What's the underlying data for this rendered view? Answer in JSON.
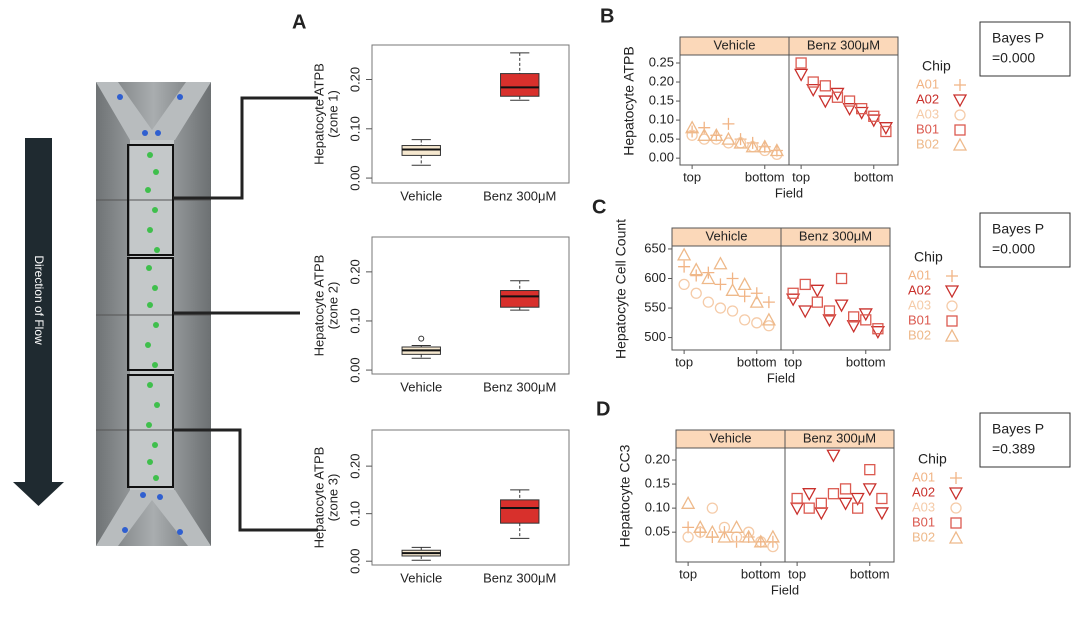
{
  "figure": {
    "flow_label": "Direction of Flow"
  },
  "chart_data": [
    {
      "type": "box",
      "panel_label": "A",
      "ylabel": "Hepatocyte ATPB",
      "ylabel_sub": "(zone 1)",
      "categories": [
        "Vehicle",
        "Benz 300μM"
      ],
      "colors": [
        "#f6e8cf",
        "#d8302c"
      ],
      "boxes": [
        {
          "min": 0.026,
          "q1": 0.046,
          "median": 0.058,
          "q3": 0.066,
          "max": 0.078,
          "outliers": []
        },
        {
          "min": 0.158,
          "q1": 0.166,
          "median": 0.184,
          "q3": 0.212,
          "max": 0.254,
          "outliers": []
        }
      ],
      "ylim": [
        -0.01,
        0.27
      ],
      "yticks": [
        {
          "value": 0,
          "label": "0.00"
        },
        {
          "value": 0.1,
          "label": "0.10"
        },
        {
          "value": 0.2,
          "label": "0.20"
        }
      ]
    },
    {
      "type": "box",
      "ylabel": "Hepatocyte ATPB",
      "ylabel_sub": "(zone 2)",
      "categories": [
        "Vehicle",
        "Benz 300μM"
      ],
      "colors": [
        "#f6e8cf",
        "#d8302c"
      ],
      "boxes": [
        {
          "min": 0.024,
          "q1": 0.032,
          "median": 0.04,
          "q3": 0.047,
          "max": 0.05,
          "outliers": [
            0.064
          ]
        },
        {
          "min": 0.122,
          "q1": 0.128,
          "median": 0.15,
          "q3": 0.162,
          "max": 0.182,
          "outliers": []
        }
      ],
      "ylim": [
        -0.008,
        0.271
      ],
      "yticks": [
        {
          "value": 0,
          "label": "0.00"
        },
        {
          "value": 0.1,
          "label": "0.10"
        },
        {
          "value": 0.2,
          "label": "0.20"
        }
      ]
    },
    {
      "type": "box",
      "ylabel": "Hepatocyte ATPB",
      "ylabel_sub": "(zone 3)",
      "categories": [
        "Vehicle",
        "Benz 300μM"
      ],
      "colors": [
        "#f6e8cf",
        "#d8302c"
      ],
      "boxes": [
        {
          "min": 0.002,
          "q1": 0.011,
          "median": 0.017,
          "q3": 0.023,
          "max": 0.029,
          "outliers": []
        },
        {
          "min": 0.048,
          "q1": 0.08,
          "median": 0.112,
          "q3": 0.129,
          "max": 0.15,
          "outliers": []
        }
      ],
      "ylim": [
        -0.008,
        0.276
      ],
      "yticks": [
        {
          "value": 0,
          "label": "0.00"
        },
        {
          "value": 0.1,
          "label": "0.10"
        },
        {
          "value": 0.2,
          "label": "0.20"
        }
      ]
    },
    {
      "type": "facet-scatter",
      "panel_label": "B",
      "facets": [
        "Vehicle",
        "Benz 300μM"
      ],
      "ylabel": "Hepatocyte ATPB",
      "xlabel": "Field",
      "legend_title": "Chip",
      "annotation": [
        "Bayes P",
        "=0.000"
      ],
      "x": [
        1,
        2,
        3,
        4,
        5,
        6,
        7,
        8
      ],
      "xlim": [
        0,
        9
      ],
      "xticks": [
        {
          "value": 1,
          "label": "top"
        },
        {
          "value": 7,
          "label": "bottom"
        }
      ],
      "ylim": [
        -0.018,
        0.271
      ],
      "yticks": [
        {
          "value": 0,
          "label": "0.00"
        },
        {
          "value": 0.05,
          "label": "0.05"
        },
        {
          "value": 0.1,
          "label": "0.10"
        },
        {
          "value": 0.15,
          "label": "0.15"
        },
        {
          "value": 0.2,
          "label": "0.20"
        },
        {
          "value": 0.25,
          "label": "0.25"
        }
      ],
      "series": [
        {
          "name": "A01",
          "color": "#f1b485",
          "marker": "plus",
          "facet": 0,
          "values": [
            0.07,
            0.08,
            0.06,
            0.09,
            0.05,
            0.04,
            0.03,
            0.02
          ]
        },
        {
          "name": "A02",
          "color": "#c9302c",
          "marker": "triangle-down",
          "facet": 1,
          "values": [
            0.22,
            0.18,
            0.15,
            0.17,
            0.13,
            0.12,
            0.1,
            0.08
          ]
        },
        {
          "name": "A03",
          "color": "#f5cba8",
          "marker": "circle",
          "facet": 0,
          "values": [
            0.06,
            0.05,
            0.05,
            0.04,
            0.04,
            0.03,
            0.02,
            0.01
          ]
        },
        {
          "name": "B01",
          "color": "#db5a50",
          "marker": "square",
          "facet": 1,
          "values": [
            0.25,
            0.2,
            0.19,
            0.16,
            0.15,
            0.13,
            0.11,
            0.07
          ]
        },
        {
          "name": "B02",
          "color": "#eeb98a",
          "marker": "triangle-up",
          "facet": 0,
          "values": [
            0.08,
            0.06,
            0.06,
            0.05,
            0.04,
            0.03,
            0.03,
            0.02
          ]
        }
      ]
    },
    {
      "type": "facet-scatter",
      "panel_label": "C",
      "facets": [
        "Vehicle",
        "Benz 300μM"
      ],
      "ylabel": "Hepatocyte Cell Count",
      "xlabel": "Field",
      "legend_title": "Chip",
      "annotation": [
        "Bayes P",
        "=0.000"
      ],
      "x": [
        1,
        2,
        3,
        4,
        5,
        6,
        7,
        8
      ],
      "xlim": [
        0,
        9
      ],
      "xticks": [
        {
          "value": 1,
          "label": "top"
        },
        {
          "value": 7,
          "label": "bottom"
        }
      ],
      "ylim": [
        479,
        655
      ],
      "yticks": [
        500,
        550,
        600,
        650
      ],
      "series": [
        {
          "name": "A01",
          "color": "#f1b485",
          "marker": "plus",
          "facet": 0,
          "values": [
            620,
            605,
            610,
            590,
            600,
            570,
            575,
            560
          ]
        },
        {
          "name": "A02",
          "color": "#c9302c",
          "marker": "triangle-down",
          "facet": 1,
          "values": [
            565,
            545,
            580,
            530,
            555,
            520,
            540,
            510
          ]
        },
        {
          "name": "A03",
          "color": "#f5cba8",
          "marker": "circle",
          "facet": 0,
          "values": [
            590,
            575,
            560,
            550,
            545,
            530,
            525,
            520
          ]
        },
        {
          "name": "B01",
          "color": "#db5a50",
          "marker": "square",
          "facet": 1,
          "values": [
            575,
            590,
            560,
            545,
            600,
            535,
            530,
            515
          ]
        },
        {
          "name": "B02",
          "color": "#eeb98a",
          "marker": "triangle-up",
          "facet": 0,
          "values": [
            640,
            615,
            600,
            625,
            580,
            590,
            560,
            530
          ]
        }
      ]
    },
    {
      "type": "facet-scatter",
      "panel_label": "D",
      "facets": [
        "Vehicle",
        "Benz 300μM"
      ],
      "ylabel": "Hepatocyte CC3",
      "xlabel": "Field",
      "legend_title": "Chip",
      "annotation": [
        "Bayes P",
        "=0.389"
      ],
      "x": [
        1,
        2,
        3,
        4,
        5,
        6,
        7,
        8
      ],
      "xlim": [
        0,
        9
      ],
      "xticks": [
        {
          "value": 1,
          "label": "top"
        },
        {
          "value": 7,
          "label": "bottom"
        }
      ],
      "ylim": [
        -0.012,
        0.225
      ],
      "yticks": [
        {
          "value": 0.05,
          "label": "0.05"
        },
        {
          "value": 0.1,
          "label": "0.10"
        },
        {
          "value": 0.15,
          "label": "0.15"
        },
        {
          "value": 0.2,
          "label": "0.20"
        }
      ],
      "series": [
        {
          "name": "A01",
          "color": "#f1b485",
          "marker": "plus",
          "facet": 0,
          "values": [
            0.06,
            0.05,
            0.04,
            0.05,
            0.03,
            0.04,
            0.03,
            0.03
          ]
        },
        {
          "name": "A02",
          "color": "#c9302c",
          "marker": "triangle-down",
          "facet": 1,
          "values": [
            0.1,
            0.13,
            0.09,
            0.21,
            0.11,
            0.12,
            0.14,
            0.09
          ]
        },
        {
          "name": "A03",
          "color": "#f5cba8",
          "marker": "circle",
          "facet": 0,
          "values": [
            0.04,
            0.05,
            0.1,
            0.06,
            0.04,
            0.05,
            0.03,
            0.02
          ]
        },
        {
          "name": "B01",
          "color": "#db5a50",
          "marker": "square",
          "facet": 1,
          "values": [
            0.12,
            0.1,
            0.11,
            0.13,
            0.14,
            0.1,
            0.18,
            0.12
          ]
        },
        {
          "name": "B02",
          "color": "#eeb98a",
          "marker": "triangle-up",
          "facet": 0,
          "values": [
            0.11,
            0.06,
            0.05,
            0.04,
            0.06,
            0.04,
            0.03,
            0.04
          ]
        }
      ]
    }
  ]
}
